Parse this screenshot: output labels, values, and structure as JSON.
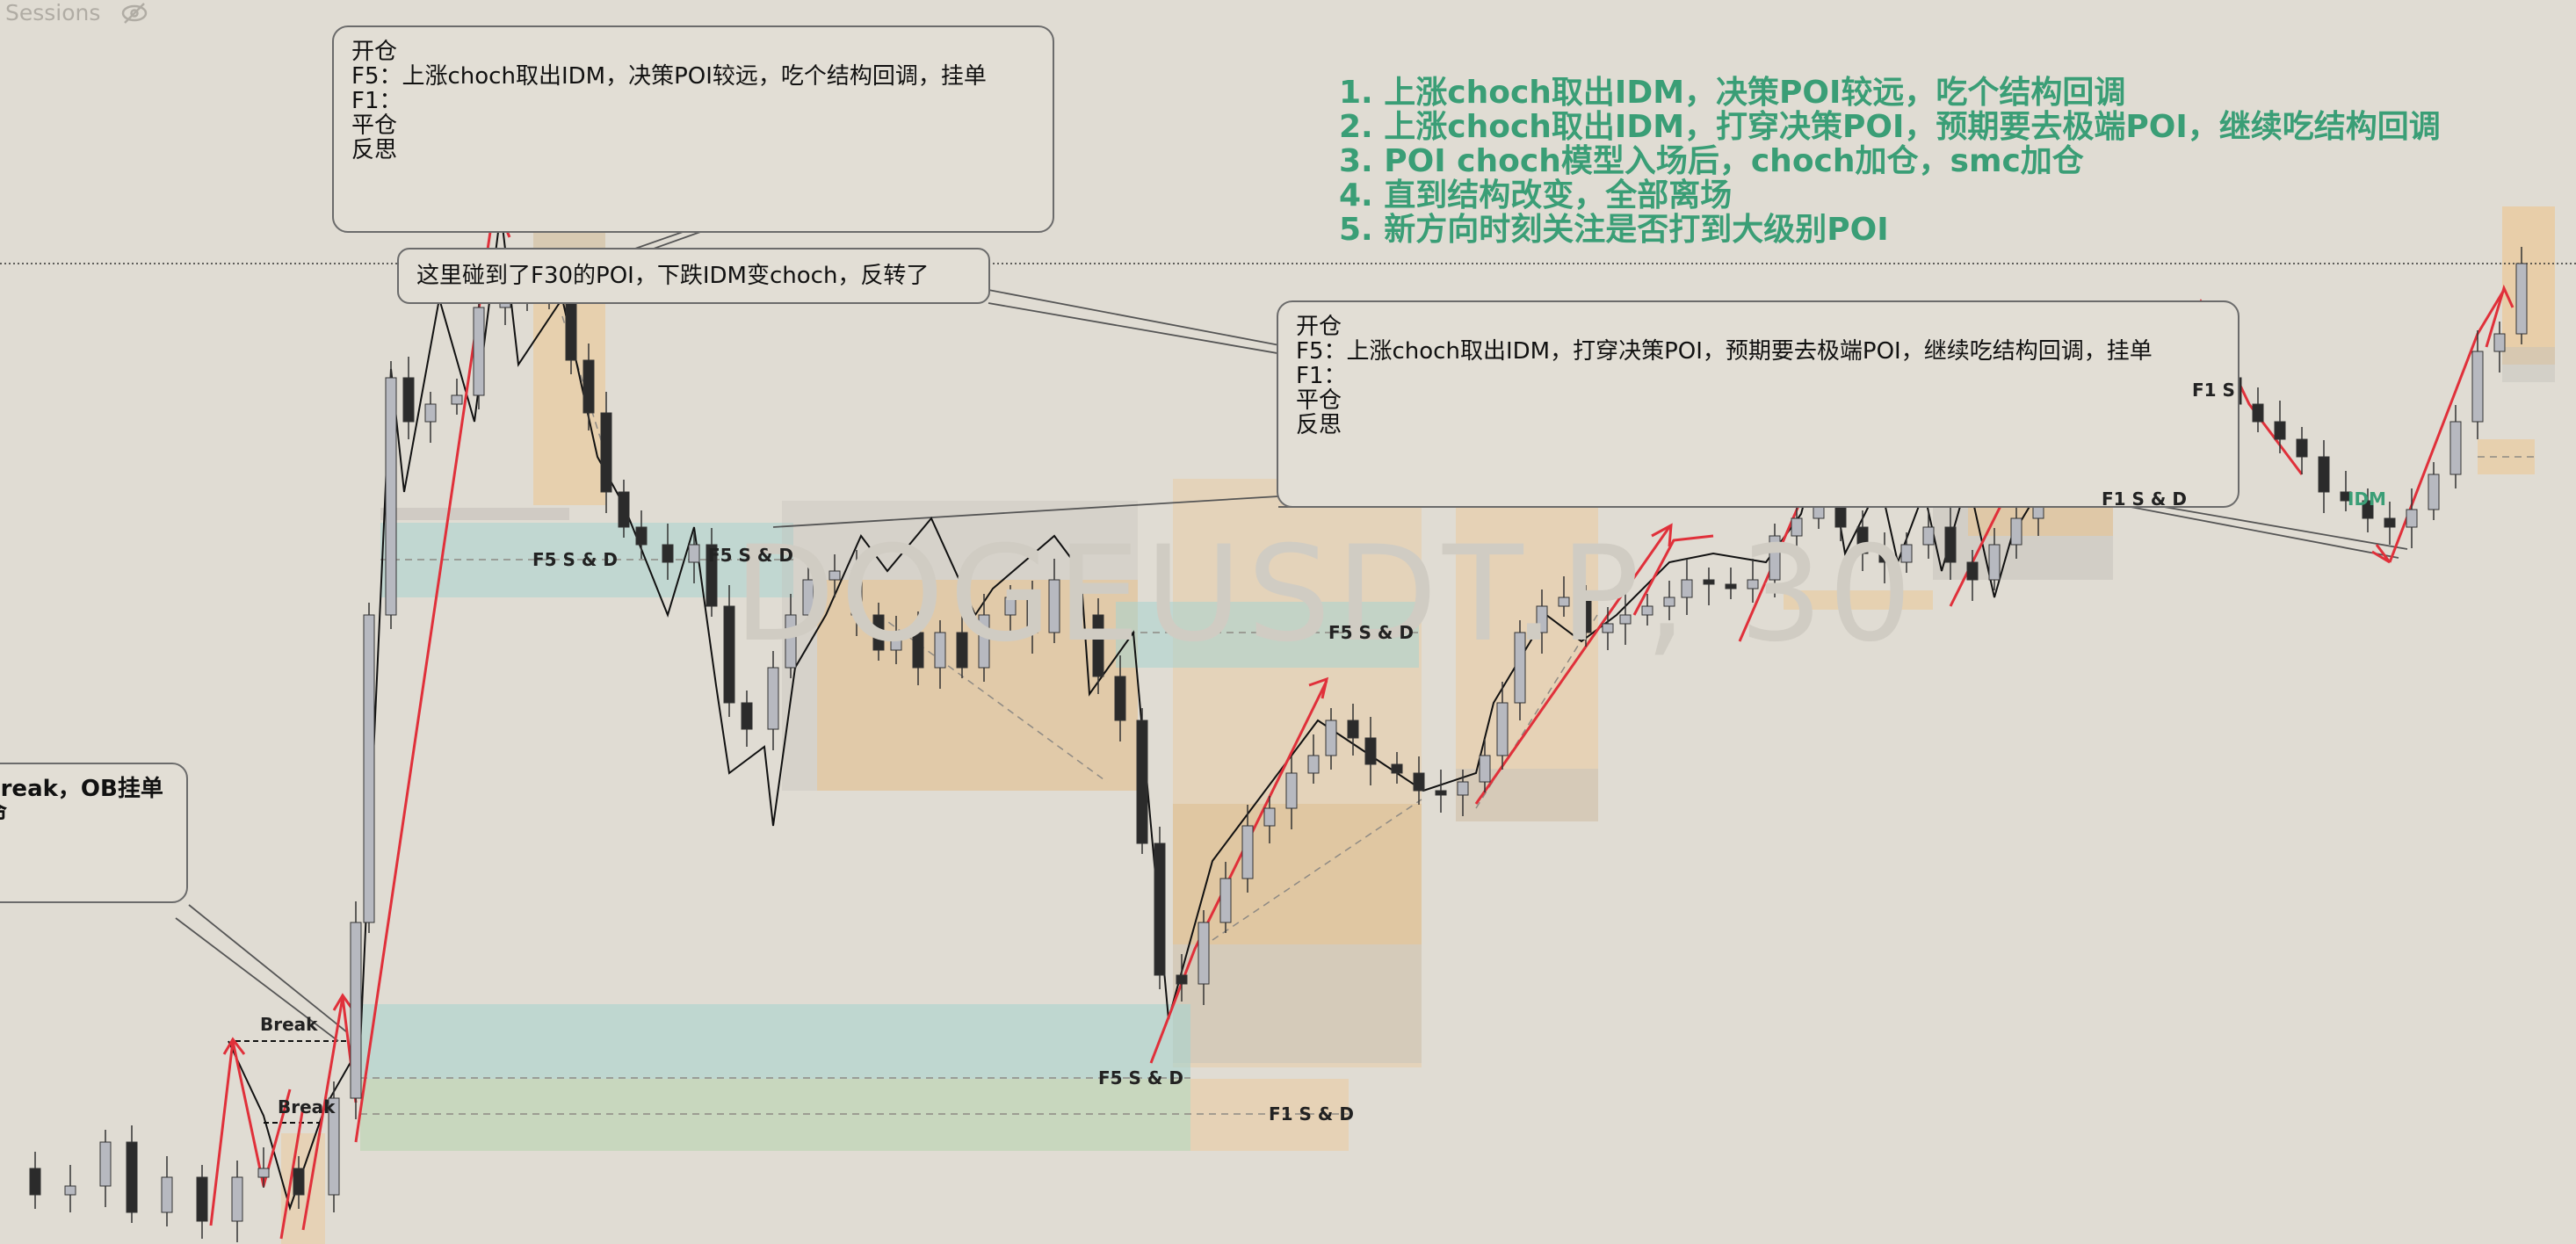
{
  "toolbar": {
    "sessions_label": "Sessions",
    "visibility_icon": "eye-slash-icon"
  },
  "watermark": "DOGEUSDT.P, 30",
  "plan_notes": [
    "1. 上涨choch取出IDM，决策POI较远，吃个结构回调",
    "2. 上涨choch取出IDM，打穿决策POI，预期要去极端POI，继续吃结构回调",
    "3. POI choch模型入场后，choch加仓，smc加仓",
    "4. 直到结构改变，全部离场",
    "5. 新方向时刻关注是否打到大级别POI"
  ],
  "note_top": {
    "lines": [
      "开仓",
      "F5：上涨choch取出IDM，决策POI较远，吃个结构回调，挂单",
      "F1：",
      "",
      "平仓",
      "",
      "反思"
    ]
  },
  "note_mid": {
    "lines": [
      "开仓",
      "F5：上涨choch取出IDM，打穿决策POI，预期要去极端POI，继续吃结构回调，挂单",
      "F1：",
      "",
      "平仓",
      "",
      "反思"
    ]
  },
  "note_left": {
    "lines": [
      "break，OB挂单",
      "",
      "",
      "命"
    ]
  },
  "callout_reversal": "这里碰到了F30的POI，下跌IDM变choch，反转了",
  "zone_labels": {
    "f5_sd_1": "F5   S & D",
    "f5_sd_2": "F5   S & D",
    "f5_sd_3": "F5   S & D",
    "f5_sd_4": "F5   S & D",
    "f1_sd_1": "F1 S & D",
    "f1_sd_2": "F1 S & D",
    "f1_s_partial": "F1 S",
    "break_1": "Break",
    "break_2": "Break",
    "idm_label": "IDM"
  },
  "colors": {
    "background": "#e0dcd3",
    "annotation_green": "#3a9e76",
    "bull_candle": "#b7b9c0",
    "bear_candle": "#2b2b2b",
    "arrow_red": "#e0303a",
    "zone_orange": "#f0c080",
    "zone_teal": "#a8d4cf",
    "zone_green": "#b8d4b0",
    "zone_gray": "#c4c0ba"
  }
}
